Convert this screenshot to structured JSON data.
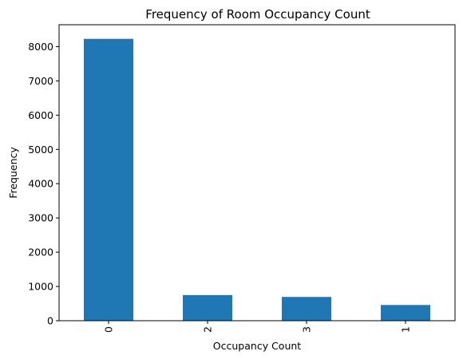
{
  "chart_data": {
    "type": "bar",
    "title": "Frequency of Room Occupancy Count",
    "xlabel": "Occupancy Count",
    "ylabel": "Frequency",
    "categories": [
      "0",
      "2",
      "3",
      "1"
    ],
    "values": [
      8228,
      748,
      694,
      459
    ],
    "yticks": [
      0,
      1000,
      2000,
      3000,
      4000,
      5000,
      6000,
      7000,
      8000
    ],
    "ylim": [
      0,
      8640
    ],
    "grid": false,
    "bar_color": "#1f77b4",
    "x_tick_rotation": "vertical"
  }
}
